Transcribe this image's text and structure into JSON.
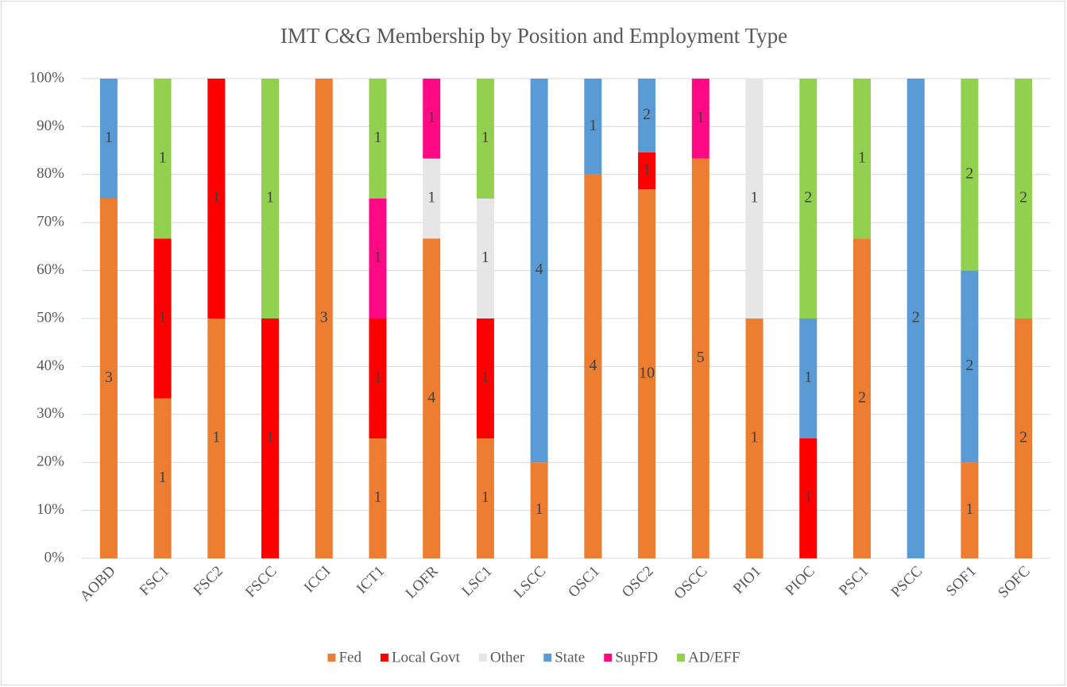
{
  "chart_data": {
    "type": "bar",
    "stacking": "percent",
    "title": "IMT C&G Membership by Position and Employment Type",
    "categories": [
      "AOBD",
      "FSC1",
      "FSC2",
      "FSCC",
      "ICCI",
      "ICT1",
      "LOFR",
      "LSC1",
      "LSCC",
      "OSC1",
      "OSC2",
      "OSCC",
      "PIO1",
      "PIOC",
      "PSC1",
      "PSCC",
      "SOF1",
      "SOFC"
    ],
    "series": [
      {
        "name": "Fed",
        "color": "#ED7D31",
        "values": [
          3,
          1,
          1,
          null,
          3,
          1,
          4,
          1,
          1,
          4,
          10,
          5,
          1,
          null,
          2,
          null,
          1,
          2
        ]
      },
      {
        "name": "Local Govt",
        "color": "#FF0000",
        "values": [
          null,
          1,
          1,
          1,
          null,
          1,
          null,
          1,
          null,
          null,
          1,
          null,
          null,
          1,
          null,
          null,
          null,
          null
        ]
      },
      {
        "name": "Other",
        "color": "#E7E6E6",
        "values": [
          null,
          null,
          null,
          null,
          null,
          null,
          1,
          1,
          null,
          null,
          null,
          null,
          1,
          null,
          null,
          null,
          null,
          null
        ]
      },
      {
        "name": "State",
        "color": "#5B9BD5",
        "values": [
          1,
          null,
          null,
          null,
          null,
          null,
          null,
          null,
          4,
          1,
          2,
          null,
          null,
          1,
          null,
          2,
          2,
          null
        ]
      },
      {
        "name": "SupFD",
        "color": "#FF0A84",
        "values": [
          null,
          null,
          null,
          null,
          null,
          1,
          1,
          null,
          null,
          null,
          null,
          1,
          null,
          null,
          null,
          null,
          null,
          null
        ]
      },
      {
        "name": "AD/EFF",
        "color": "#92D050",
        "values": [
          null,
          1,
          null,
          1,
          null,
          1,
          null,
          1,
          null,
          null,
          null,
          null,
          null,
          2,
          1,
          null,
          2,
          2
        ]
      }
    ],
    "ylim": [
      0,
      100
    ],
    "yticks": [
      {
        "value": 0,
        "label": "0%"
      },
      {
        "value": 10,
        "label": "10%"
      },
      {
        "value": 20,
        "label": "20%"
      },
      {
        "value": 30,
        "label": "30%"
      },
      {
        "value": 40,
        "label": "40%"
      },
      {
        "value": 50,
        "label": "50%"
      },
      {
        "value": 60,
        "label": "60%"
      },
      {
        "value": 70,
        "label": "70%"
      },
      {
        "value": 80,
        "label": "80%"
      },
      {
        "value": 90,
        "label": "90%"
      },
      {
        "value": 100,
        "label": "100%"
      }
    ],
    "grid": true,
    "legend": "bottom"
  }
}
